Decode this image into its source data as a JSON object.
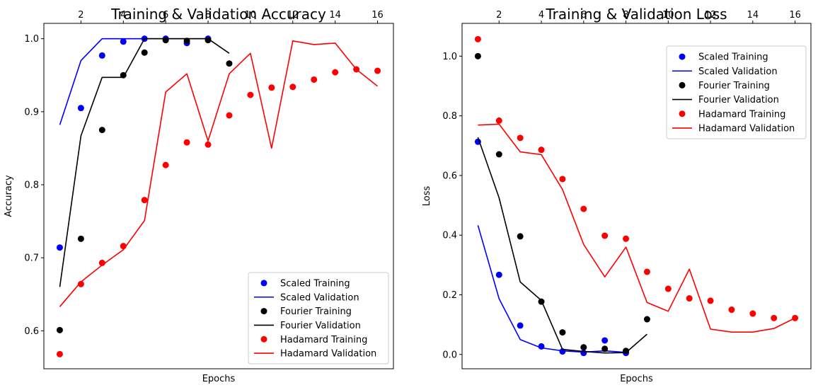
{
  "chart_data": [
    {
      "type": "line",
      "title": "Training & Validation Accuracy",
      "xlabel": "Epochs",
      "ylabel": "Accuracy",
      "xlim": [
        0.25,
        16.75
      ],
      "ylim": [
        0.548,
        1.021
      ],
      "x_ticks": [
        2,
        4,
        6,
        8,
        10,
        12,
        14,
        16
      ],
      "x_tick_labels": [
        "2",
        "4",
        "6",
        "8",
        "10",
        "12",
        "14",
        "16"
      ],
      "x_ticks_position": "top",
      "y_ticks": [
        0.6,
        0.7,
        0.8,
        0.9,
        1.0
      ],
      "y_tick_labels": [
        "0.6",
        "0.7",
        "0.8",
        "0.9",
        "1.0"
      ],
      "grid": false,
      "legend_position": "lower-right",
      "series": [
        {
          "name": "Scaled Training",
          "style": "markers",
          "color": "#0000ff",
          "x": [
            1,
            2,
            3,
            4,
            5,
            6,
            7,
            8
          ],
          "y": [
            0.714,
            0.905,
            0.977,
            0.996,
            1.0,
            1.0,
            0.994,
            1.0
          ]
        },
        {
          "name": "Scaled Validation",
          "style": "line",
          "color": "#0000ff",
          "x": [
            1,
            2,
            3,
            4,
            5,
            6,
            7,
            8
          ],
          "y": [
            0.882,
            0.97,
            1.0,
            1.0,
            1.0,
            1.0,
            1.0,
            1.0
          ]
        },
        {
          "name": "Fourier Training",
          "style": "markers",
          "color": "#000000",
          "x": [
            1,
            2,
            3,
            4,
            5,
            6,
            7,
            8,
            9
          ],
          "y": [
            0.601,
            0.726,
            0.875,
            0.95,
            0.981,
            0.998,
            0.997,
            0.998,
            0.966
          ]
        },
        {
          "name": "Fourier Validation",
          "style": "line",
          "color": "#000000",
          "x": [
            1,
            2,
            3,
            4,
            5,
            6,
            7,
            8,
            9
          ],
          "y": [
            0.66,
            0.867,
            0.947,
            0.947,
            1.0,
            1.0,
            1.0,
            1.0,
            0.98
          ]
        },
        {
          "name": "Hadamard Training",
          "style": "markers",
          "color": "#ff0000",
          "x": [
            1,
            2,
            3,
            4,
            5,
            6,
            7,
            8,
            9,
            10,
            11,
            12,
            13,
            14,
            15,
            16
          ],
          "y": [
            0.568,
            0.664,
            0.693,
            0.716,
            0.779,
            0.827,
            0.858,
            0.855,
            0.895,
            0.923,
            0.933,
            0.934,
            0.944,
            0.954,
            0.958,
            0.956
          ]
        },
        {
          "name": "Hadamard Validation",
          "style": "line",
          "color": "#ff0000",
          "x": [
            1,
            2,
            3,
            4,
            5,
            6,
            7,
            8,
            9,
            10,
            11,
            12,
            13,
            14,
            15,
            16
          ],
          "y": [
            0.633,
            0.667,
            0.69,
            0.711,
            0.751,
            0.927,
            0.952,
            0.86,
            0.952,
            0.98,
            0.85,
            0.997,
            0.992,
            0.994,
            0.958,
            0.935
          ]
        }
      ]
    },
    {
      "type": "line",
      "title": "Training & Validation Loss",
      "xlabel": "Epochs",
      "ylabel": "Loss",
      "xlim": [
        0.25,
        16.75
      ],
      "ylim": [
        -0.048,
        1.11
      ],
      "x_ticks": [
        2,
        4,
        6,
        8,
        10,
        12,
        14,
        16
      ],
      "x_tick_labels": [
        "2",
        "4",
        "6",
        "8",
        "10",
        "12",
        "14",
        "16"
      ],
      "x_ticks_position": "top",
      "y_ticks": [
        0.0,
        0.2,
        0.4,
        0.6,
        0.8,
        1.0
      ],
      "y_tick_labels": [
        "0.0",
        "0.2",
        "0.4",
        "0.6",
        "0.8",
        "1.0"
      ],
      "grid": false,
      "legend_position": "upper-right",
      "series": [
        {
          "name": "Scaled Training",
          "style": "markers",
          "color": "#0000ff",
          "x": [
            1,
            2,
            3,
            4,
            5,
            6,
            7,
            8
          ],
          "y": [
            0.713,
            0.267,
            0.097,
            0.027,
            0.01,
            0.005,
            0.047,
            0.005
          ]
        },
        {
          "name": "Scaled Validation",
          "style": "line",
          "color": "#0000ff",
          "x": [
            1,
            2,
            3,
            4,
            5,
            6,
            7,
            8
          ],
          "y": [
            0.433,
            0.187,
            0.05,
            0.022,
            0.012,
            0.008,
            0.012,
            0.007
          ]
        },
        {
          "name": "Fourier Training",
          "style": "markers",
          "color": "#000000",
          "x": [
            1,
            2,
            3,
            4,
            5,
            6,
            7,
            8,
            9
          ],
          "y": [
            1.0,
            0.671,
            0.396,
            0.177,
            0.074,
            0.024,
            0.019,
            0.012,
            0.118
          ]
        },
        {
          "name": "Fourier Validation",
          "style": "line",
          "color": "#000000",
          "x": [
            1,
            2,
            3,
            4,
            5,
            6,
            7,
            8,
            9
          ],
          "y": [
            0.728,
            0.525,
            0.243,
            0.181,
            0.017,
            0.01,
            0.005,
            0.006,
            0.068
          ]
        },
        {
          "name": "Hadamard Training",
          "style": "markers",
          "color": "#ff0000",
          "x": [
            1,
            2,
            3,
            4,
            5,
            6,
            7,
            8,
            9,
            10,
            11,
            12,
            13,
            14,
            15,
            16
          ],
          "y": [
            1.057,
            0.784,
            0.726,
            0.686,
            0.588,
            0.488,
            0.398,
            0.388,
            0.277,
            0.22,
            0.188,
            0.18,
            0.15,
            0.137,
            0.122,
            0.122
          ]
        },
        {
          "name": "Hadamard Validation",
          "style": "line",
          "color": "#ff0000",
          "x": [
            1,
            2,
            3,
            4,
            5,
            6,
            7,
            8,
            9,
            10,
            11,
            12,
            13,
            14,
            15,
            16
          ],
          "y": [
            0.769,
            0.772,
            0.679,
            0.67,
            0.553,
            0.369,
            0.26,
            0.36,
            0.174,
            0.145,
            0.286,
            0.085,
            0.075,
            0.075,
            0.087,
            0.122
          ]
        }
      ]
    }
  ]
}
